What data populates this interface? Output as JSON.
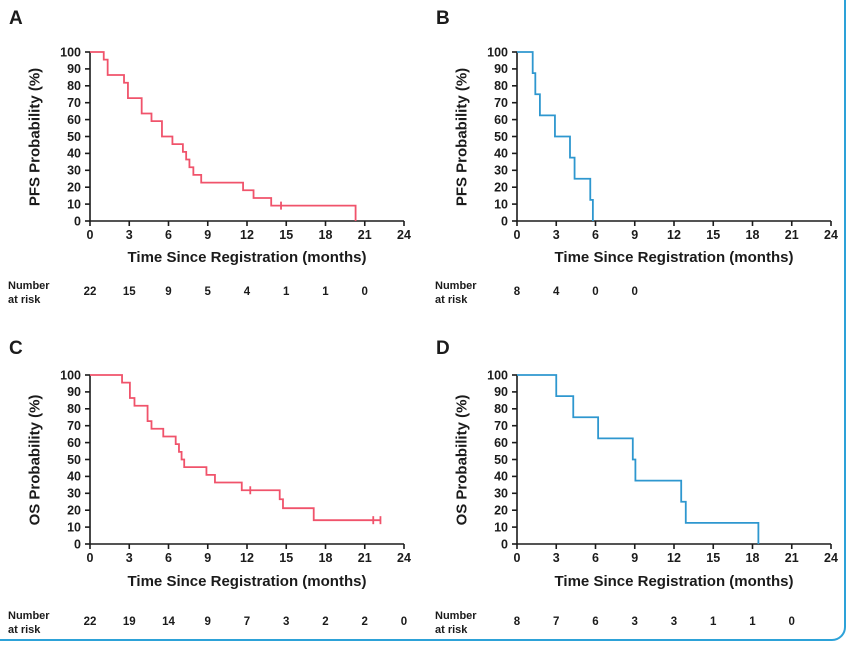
{
  "figure": {
    "border_color": "#2da2d8",
    "background": "#ffffff",
    "text_color": "#1b1b1b",
    "risk_label_line1": "Number",
    "risk_label_line2": "at risk"
  },
  "chart_data": {
    "type": "line",
    "subtype": "kaplan-meier-step",
    "xlabel": "Time Since Registration (months)",
    "xlim": [
      0,
      24
    ],
    "ylim": [
      0,
      100
    ],
    "xticks": [
      0,
      3,
      6,
      9,
      12,
      15,
      18,
      21,
      24
    ],
    "yticks": [
      0,
      10,
      20,
      30,
      40,
      50,
      60,
      70,
      80,
      90,
      100
    ],
    "grid": false,
    "legend": "none",
    "panels": [
      {
        "panel_label": "A",
        "ylabel": "PFS Probability (%)",
        "color": "#f0536b",
        "steps": [
          [
            0,
            100
          ],
          [
            1.05,
            95.5
          ],
          [
            1.35,
            86.4
          ],
          [
            2.6,
            81.8
          ],
          [
            2.9,
            72.7
          ],
          [
            3.95,
            63.6
          ],
          [
            4.7,
            59.1
          ],
          [
            5.5,
            50
          ],
          [
            6.3,
            45.5
          ],
          [
            7.1,
            40.9
          ],
          [
            7.35,
            36.4
          ],
          [
            7.6,
            31.8
          ],
          [
            7.9,
            27.3
          ],
          [
            8.5,
            22.7
          ],
          [
            11.7,
            18.2
          ],
          [
            12.5,
            13.6
          ],
          [
            13.85,
            9.1
          ],
          [
            20.3,
            0
          ]
        ],
        "censor_marks": [
          [
            14.6,
            9.1
          ]
        ],
        "risk_times": [
          0,
          3,
          6,
          9,
          12,
          15,
          18,
          21
        ],
        "risk_counts": [
          22,
          15,
          9,
          5,
          4,
          1,
          1,
          0
        ]
      },
      {
        "panel_label": "B",
        "ylabel": "PFS Probability (%)",
        "color": "#2e97cf",
        "steps": [
          [
            0,
            100
          ],
          [
            1.2,
            87.5
          ],
          [
            1.4,
            75
          ],
          [
            1.75,
            62.5
          ],
          [
            2.9,
            50
          ],
          [
            4.05,
            37.5
          ],
          [
            4.4,
            25
          ],
          [
            5.6,
            12.5
          ],
          [
            5.8,
            0
          ]
        ],
        "censor_marks": [],
        "risk_times": [
          0,
          3,
          6,
          9
        ],
        "risk_counts": [
          8,
          4,
          0,
          0
        ]
      },
      {
        "panel_label": "C",
        "ylabel": "OS Probability (%)",
        "color": "#f0536b",
        "steps": [
          [
            0,
            100
          ],
          [
            2.45,
            95.5
          ],
          [
            3.05,
            86.4
          ],
          [
            3.4,
            81.8
          ],
          [
            4.4,
            72.7
          ],
          [
            4.7,
            68.2
          ],
          [
            5.6,
            63.6
          ],
          [
            6.55,
            59.1
          ],
          [
            6.8,
            54.5
          ],
          [
            7.0,
            50
          ],
          [
            7.2,
            45.5
          ],
          [
            8.9,
            40.9
          ],
          [
            9.55,
            36.4
          ],
          [
            11.6,
            31.8
          ],
          [
            14.5,
            26.5
          ],
          [
            14.75,
            21.2
          ],
          [
            17.1,
            14.1
          ],
          [
            22.2,
            14.1
          ]
        ],
        "censor_marks": [
          [
            12.25,
            31.8
          ],
          [
            21.65,
            14.1
          ],
          [
            22.2,
            14.1
          ]
        ],
        "risk_times": [
          0,
          3,
          6,
          9,
          12,
          15,
          18,
          21,
          24
        ],
        "risk_counts": [
          22,
          19,
          14,
          9,
          7,
          3,
          2,
          2,
          0
        ]
      },
      {
        "panel_label": "D",
        "ylabel": "OS Probability (%)",
        "color": "#2e97cf",
        "steps": [
          [
            0,
            100
          ],
          [
            3.0,
            87.5
          ],
          [
            4.3,
            75
          ],
          [
            6.2,
            62.5
          ],
          [
            8.85,
            50
          ],
          [
            9.05,
            37.5
          ],
          [
            12.55,
            25
          ],
          [
            12.9,
            12.5
          ],
          [
            18.45,
            0
          ]
        ],
        "censor_marks": [],
        "risk_times": [
          0,
          3,
          6,
          9,
          12,
          15,
          18,
          21
        ],
        "risk_counts": [
          8,
          7,
          6,
          3,
          3,
          1,
          1,
          0
        ]
      }
    ]
  }
}
